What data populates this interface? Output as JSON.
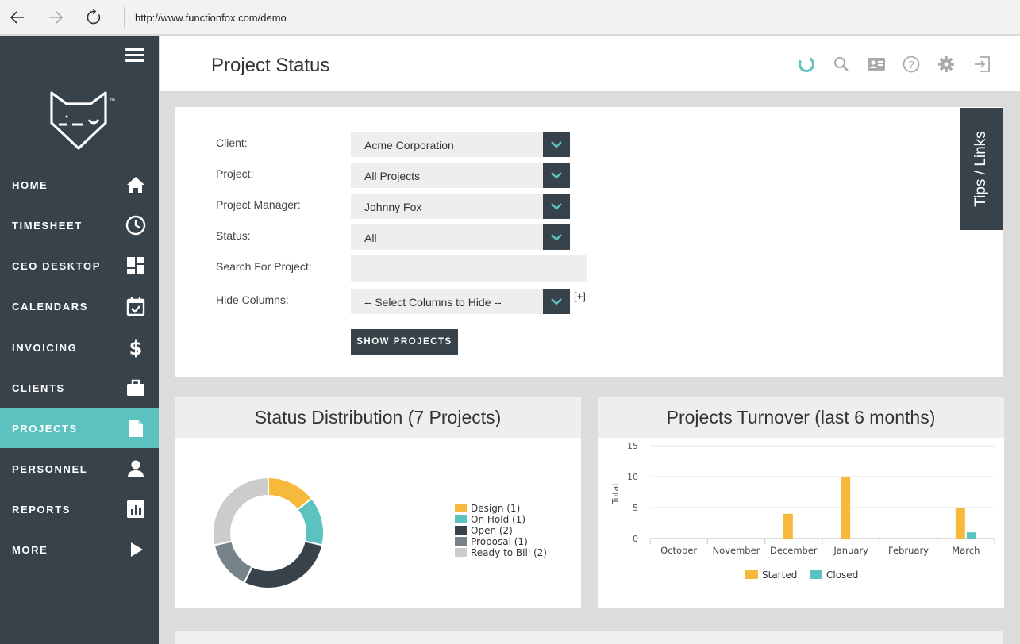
{
  "browser": {
    "url": "http://www.functionfox.com/demo",
    "icons": [
      "back-arrow-icon",
      "forward-arrow-icon",
      "refresh-icon"
    ]
  },
  "sidebar": {
    "items": [
      {
        "label": "HOME",
        "icon": "home-icon",
        "active": false
      },
      {
        "label": "TIMESHEET",
        "icon": "clock-icon",
        "active": false
      },
      {
        "label": "CEO DESKTOP",
        "icon": "dashboard-icon",
        "active": false
      },
      {
        "label": "CALENDARS",
        "icon": "calendar-icon",
        "active": false
      },
      {
        "label": "INVOICING",
        "icon": "dollar-icon",
        "active": false
      },
      {
        "label": "CLIENTS",
        "icon": "briefcase-icon",
        "active": false
      },
      {
        "label": "PROJECTS",
        "icon": "document-icon",
        "active": true
      },
      {
        "label": "PERSONNEL",
        "icon": "person-icon",
        "active": false
      },
      {
        "label": "REPORTS",
        "icon": "bar-chart-icon",
        "active": false
      },
      {
        "label": "MORE",
        "icon": "play-icon",
        "active": false
      }
    ],
    "logo_tm": "™"
  },
  "header": {
    "title": "Project Status",
    "icons": [
      "loading-spinner-icon",
      "search-icon",
      "contact-card-icon",
      "help-icon",
      "gear-icon",
      "logout-icon"
    ]
  },
  "filters": {
    "client_label": "Client:",
    "client_value": "Acme Corporation",
    "project_label": "Project:",
    "project_value": "All Projects",
    "manager_label": "Project Manager:",
    "manager_value": "Johnny Fox",
    "status_label": "Status:",
    "status_value": "All",
    "search_label": "Search For Project:",
    "search_value": "",
    "hide_label": "Hide Columns:",
    "hide_value": "-- Select Columns to Hide --",
    "hide_plus": "[+]",
    "show_button": "SHOW PROJECTS"
  },
  "tips_tab": "Tips / Links",
  "colors": {
    "sidebar": "#37424a",
    "accent": "#5bc2bf",
    "design": "#f6b93b",
    "on_hold": "#5bc2bf",
    "open": "#37424a",
    "proposal": "#76848a",
    "ready_to_bill": "#cccccc"
  },
  "chart_data": [
    {
      "type": "pie",
      "title": "Status Distribution (7 Projects)",
      "categories": [
        "Design",
        "On Hold",
        "Open",
        "Proposal",
        "Ready to Bill"
      ],
      "legend_labels": [
        "Design (1)",
        "On Hold (1)",
        "Open (2)",
        "Proposal (1)",
        "Ready to Bill (2)"
      ],
      "values": [
        1,
        1,
        2,
        1,
        2
      ],
      "colors": [
        "#f6b93b",
        "#5bc2bf",
        "#37424a",
        "#76848a",
        "#cccccc"
      ],
      "legend": "right"
    },
    {
      "type": "bar",
      "title": "Projects Turnover (last 6 months)",
      "categories": [
        "October",
        "November",
        "December",
        "January",
        "February",
        "March"
      ],
      "series": [
        {
          "name": "Started",
          "values": [
            0,
            0,
            4,
            10,
            0,
            5
          ],
          "color": "#f6b93b"
        },
        {
          "name": "Closed",
          "values": [
            0,
            0,
            0,
            0,
            0,
            1
          ],
          "color": "#5bc2bf"
        }
      ],
      "ylabel": "Total",
      "ylim": [
        0,
        15
      ],
      "yticks": [
        0,
        5,
        10,
        15
      ],
      "grid": true,
      "legend": "bottom"
    }
  ]
}
